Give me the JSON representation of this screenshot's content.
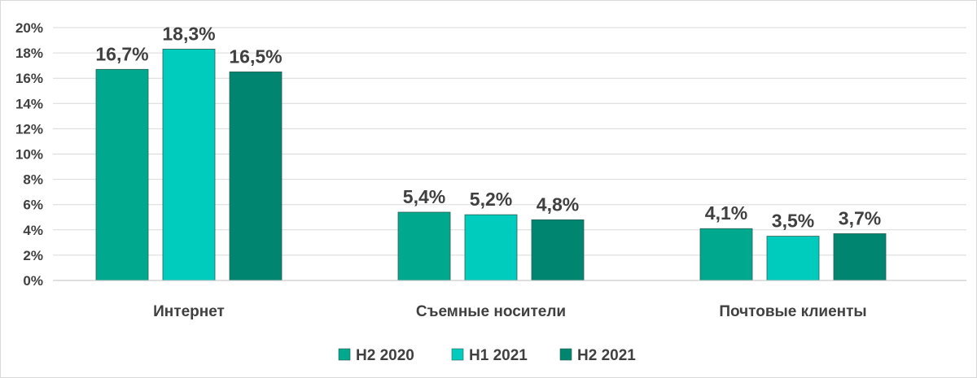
{
  "chart_data": {
    "type": "bar",
    "categories": [
      "Интернет",
      "Съемные носители",
      "Почтовые клиенты"
    ],
    "series": [
      {
        "name": "H2 2020",
        "color": "#00A88E",
        "values": [
          16.7,
          5.4,
          4.1
        ],
        "labels": [
          "16,7%",
          "5,4%",
          "4,1%"
        ]
      },
      {
        "name": "H1 2021",
        "color": "#00CCBE",
        "values": [
          18.3,
          5.2,
          3.5
        ],
        "labels": [
          "18,3%",
          "5,2%",
          "3,5%"
        ]
      },
      {
        "name": "H2 2021",
        "color": "#008571",
        "values": [
          16.5,
          4.8,
          3.7
        ],
        "labels": [
          "16,5%",
          "4,8%",
          "3,7%"
        ]
      }
    ],
    "ylim": [
      0,
      20
    ],
    "yticks": [
      {
        "value": 0,
        "label": "0%"
      },
      {
        "value": 2,
        "label": "2%"
      },
      {
        "value": 4,
        "label": "4%"
      },
      {
        "value": 6,
        "label": "6%"
      },
      {
        "value": 8,
        "label": "8%"
      },
      {
        "value": 10,
        "label": "10%"
      },
      {
        "value": 12,
        "label": "12%"
      },
      {
        "value": 14,
        "label": "14%"
      },
      {
        "value": 16,
        "label": "16%"
      },
      {
        "value": 18,
        "label": "18%"
      },
      {
        "value": 20,
        "label": "20%"
      }
    ],
    "grid": true,
    "legend_position": "bottom",
    "gridline_color": "#d9d9d9",
    "axis_color": "#bfbfbf",
    "text_color": "#404040"
  }
}
